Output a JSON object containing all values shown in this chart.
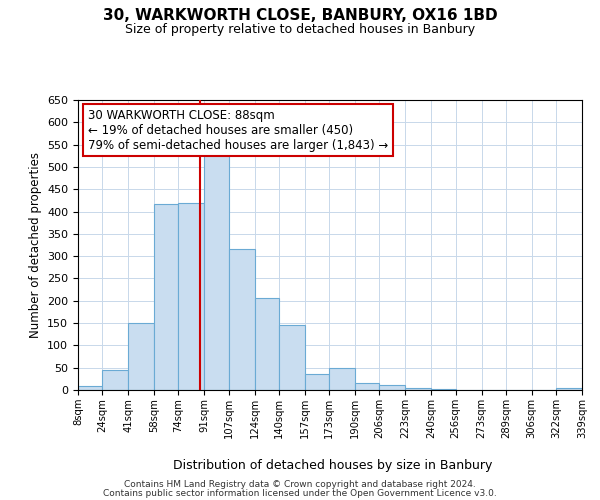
{
  "title": "30, WARKWORTH CLOSE, BANBURY, OX16 1BD",
  "subtitle": "Size of property relative to detached houses in Banbury",
  "xlabel": "Distribution of detached houses by size in Banbury",
  "ylabel": "Number of detached properties",
  "bar_color": "#c9ddf0",
  "bar_edge_color": "#6aaad4",
  "grid_color": "#c8d8ea",
  "vline_color": "#cc0000",
  "vline_x": 88,
  "annotation_line1": "30 WARKWORTH CLOSE: 88sqm",
  "annotation_line2": "← 19% of detached houses are smaller (450)",
  "annotation_line3": "79% of semi-detached houses are larger (1,843) →",
  "annotation_box_edge": "#cc0000",
  "bins": [
    8,
    24,
    41,
    58,
    74,
    91,
    107,
    124,
    140,
    157,
    173,
    190,
    206,
    223,
    240,
    256,
    273,
    289,
    306,
    322,
    339
  ],
  "counts": [
    8,
    44,
    150,
    418,
    420,
    530,
    315,
    206,
    145,
    35,
    50,
    15,
    12,
    5,
    2,
    1,
    1,
    0,
    0,
    5
  ],
  "ylim": [
    0,
    650
  ],
  "yticks": [
    0,
    50,
    100,
    150,
    200,
    250,
    300,
    350,
    400,
    450,
    500,
    550,
    600,
    650
  ],
  "footer1": "Contains HM Land Registry data © Crown copyright and database right 2024.",
  "footer2": "Contains public sector information licensed under the Open Government Licence v3.0."
}
